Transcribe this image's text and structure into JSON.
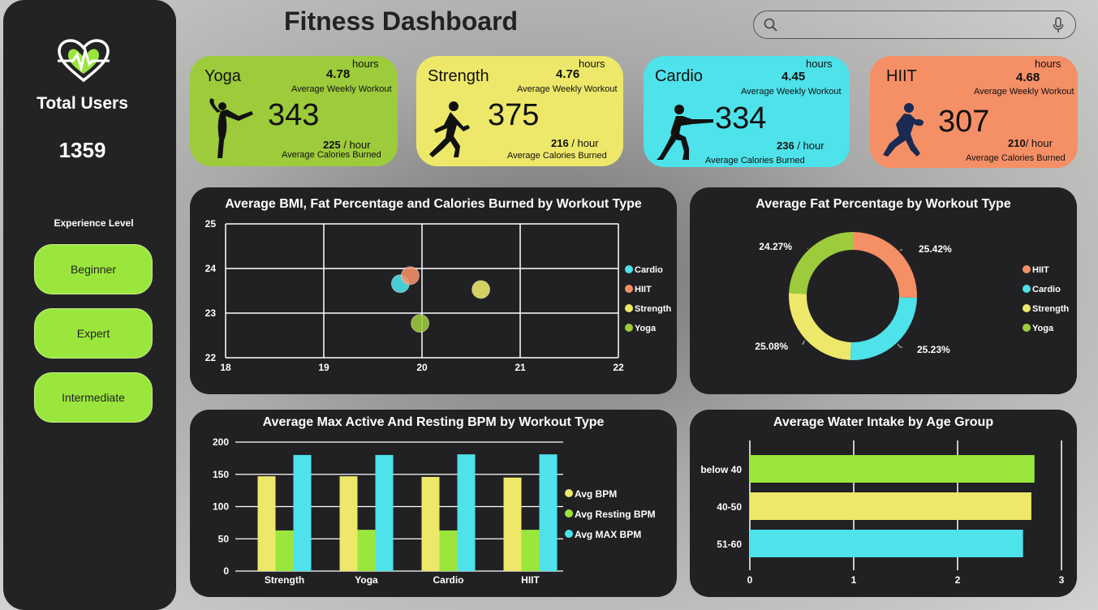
{
  "app": {
    "title": "Fitness Dashboard"
  },
  "search": {
    "placeholder": "",
    "icon": "search-icon",
    "mic_icon": "mic-icon"
  },
  "sidebar": {
    "total_label": "Total Users",
    "total_value": "1359",
    "experience_label": "Experience Level",
    "levels": [
      "Beginner",
      "Expert",
      "Intermediate"
    ]
  },
  "cards": [
    {
      "title": "Yoga",
      "hours_unit": "hours",
      "avg_weekly": "4.78",
      "avg_weekly_label": "Average Weekly Workout",
      "users": "343",
      "calories": "225",
      "cal_unit": "/ hour",
      "calories_label": "Average Calories Burned",
      "color": "#9dcb3c",
      "icon": "yoga-pose-icon"
    },
    {
      "title": "Strength",
      "hours_unit": "hours",
      "avg_weekly": "4.76",
      "avg_weekly_label": "Average Weekly Workout",
      "users": "375",
      "calories": "216",
      "cal_unit": "/ hour",
      "calories_label": "Average Calories Burned",
      "color": "#ede86a",
      "icon": "runner-icon"
    },
    {
      "title": "Cardio",
      "hours_unit": "hours",
      "avg_weekly": "4.45",
      "avg_weekly_label": "Average Weekly Workout",
      "users": "334",
      "calories": "236",
      "cal_unit": "/ hour",
      "calories_label": "Average Calories Burned",
      "color": "#4ee2ea",
      "icon": "squat-icon"
    },
    {
      "title": "HIIT",
      "hours_unit": "hours",
      "avg_weekly": "4.68",
      "avg_weekly_label": "Average Weekly Workout",
      "users": "307",
      "calories": "210",
      "cal_unit": "/ hour",
      "calories_label": "Average Calories Burned",
      "color": "#f58f66",
      "icon": "rugby-player-icon"
    }
  ],
  "colors": {
    "HIIT": "#f58f66",
    "Cardio": "#4ee2ea",
    "Strength": "#ede86a",
    "Yoga": "#9dcb3c",
    "green": "#9be63c"
  },
  "chart_data": [
    {
      "type": "scatter",
      "title": "Average BMI, Fat Percentage and Calories Burned by Workout Type",
      "xlim": [
        18,
        22
      ],
      "ylim": [
        22,
        25
      ],
      "x_ticks": [
        18,
        19,
        20,
        21,
        22
      ],
      "y_ticks": [
        22,
        23,
        24,
        25
      ],
      "grid": true,
      "legend": [
        "Cardio",
        "HIIT",
        "Strength",
        "Yoga"
      ],
      "legend_position": "right",
      "series": [
        {
          "name": "Cardio",
          "x": 19.78,
          "y": 23.66,
          "color": "#4ee2ea"
        },
        {
          "name": "HIIT",
          "x": 19.88,
          "y": 23.84,
          "color": "#f58f66"
        },
        {
          "name": "Strength",
          "x": 20.6,
          "y": 23.53,
          "color": "#ede86a"
        },
        {
          "name": "Yoga",
          "x": 19.98,
          "y": 22.77,
          "color": "#9dcb3c"
        }
      ]
    },
    {
      "type": "pie",
      "title": "Average Fat Percentage by Workout Type",
      "donut": true,
      "legend": [
        "HIIT",
        "Cardio",
        "Strength",
        "Yoga"
      ],
      "legend_position": "right",
      "slices": [
        {
          "name": "HIIT",
          "value": 25.42,
          "label": "25.42%",
          "color": "#f58f66"
        },
        {
          "name": "Cardio",
          "value": 25.23,
          "label": "25.23%",
          "color": "#4ee2ea"
        },
        {
          "name": "Strength",
          "value": 25.08,
          "label": "25.08%",
          "color": "#ede86a"
        },
        {
          "name": "Yoga",
          "value": 24.27,
          "label": "24.27%",
          "color": "#9dcb3c"
        }
      ]
    },
    {
      "type": "bar",
      "title": "Average Max Active And Resting BPM by Workout Type",
      "categories": [
        "Strength",
        "Yoga",
        "Cardio",
        "HIIT"
      ],
      "ylim": [
        0,
        200
      ],
      "y_ticks": [
        0,
        50,
        100,
        150,
        200
      ],
      "legend_position": "right",
      "series": [
        {
          "name": "Avg BPM",
          "values": [
            147,
            147,
            146,
            145
          ],
          "color": "#ede86a"
        },
        {
          "name": "Avg Resting BPM",
          "values": [
            63,
            64,
            63,
            64
          ],
          "color": "#9be63c"
        },
        {
          "name": "Avg MAX BPM",
          "values": [
            180,
            180,
            181,
            181
          ],
          "color": "#4ee2ea"
        }
      ]
    },
    {
      "type": "bar",
      "orientation": "horizontal",
      "title": "Average Water Intake by Age Group",
      "categories": [
        "below 40",
        "40-50",
        "51-60"
      ],
      "values": [
        2.74,
        2.71,
        2.63
      ],
      "colors": [
        "#9be63c",
        "#ede86a",
        "#4ee2ea"
      ],
      "xlim": [
        0,
        3
      ],
      "x_ticks": [
        0,
        1,
        2,
        3
      ]
    }
  ]
}
